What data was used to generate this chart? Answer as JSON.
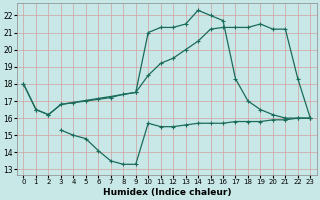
{
  "xlabel": "Humidex (Indice chaleur)",
  "bg_color": "#c8e8e8",
  "grid_color": "#b8d4d4",
  "line_color": "#1a6b5a",
  "xlim": [
    -0.5,
    23.5
  ],
  "ylim": [
    12.7,
    22.7
  ],
  "yticks": [
    13,
    14,
    15,
    16,
    17,
    18,
    19,
    20,
    21,
    22
  ],
  "xticks": [
    0,
    1,
    2,
    3,
    4,
    5,
    6,
    7,
    8,
    9,
    10,
    11,
    12,
    13,
    14,
    15,
    16,
    17,
    18,
    19,
    20,
    21,
    22,
    23
  ],
  "line1_x": [
    0,
    1,
    2,
    3,
    9,
    10,
    11,
    12,
    13,
    14,
    15,
    16,
    17,
    18,
    19,
    20,
    21,
    22,
    23
  ],
  "line1_y": [
    18.0,
    16.5,
    16.2,
    16.8,
    17.5,
    21.0,
    21.3,
    21.3,
    21.5,
    22.3,
    22.0,
    21.7,
    18.3,
    17.0,
    16.5,
    16.2,
    16.0,
    16.0,
    16.0
  ],
  "line2_x": [
    0,
    1,
    2,
    3,
    4,
    5,
    6,
    7,
    8,
    9,
    10,
    11,
    12,
    13,
    14,
    15,
    16,
    17,
    18,
    19,
    20,
    21,
    22,
    23
  ],
  "line2_y": [
    18.0,
    16.5,
    16.2,
    16.8,
    16.9,
    17.0,
    17.1,
    17.2,
    17.4,
    17.5,
    18.5,
    19.2,
    19.5,
    20.0,
    20.5,
    21.2,
    21.3,
    21.3,
    21.3,
    21.5,
    21.2,
    21.2,
    18.3,
    16.0
  ],
  "line3_x": [
    3,
    4,
    5,
    6,
    7,
    8,
    9,
    10,
    11,
    12,
    13,
    14,
    15,
    16,
    17,
    18,
    19,
    20,
    21,
    22,
    23
  ],
  "line3_y": [
    15.3,
    15.0,
    14.8,
    14.1,
    13.5,
    13.3,
    13.3,
    15.7,
    15.5,
    15.5,
    15.6,
    15.7,
    15.7,
    15.7,
    15.8,
    15.8,
    15.8,
    15.9,
    15.9,
    16.0,
    16.0
  ]
}
